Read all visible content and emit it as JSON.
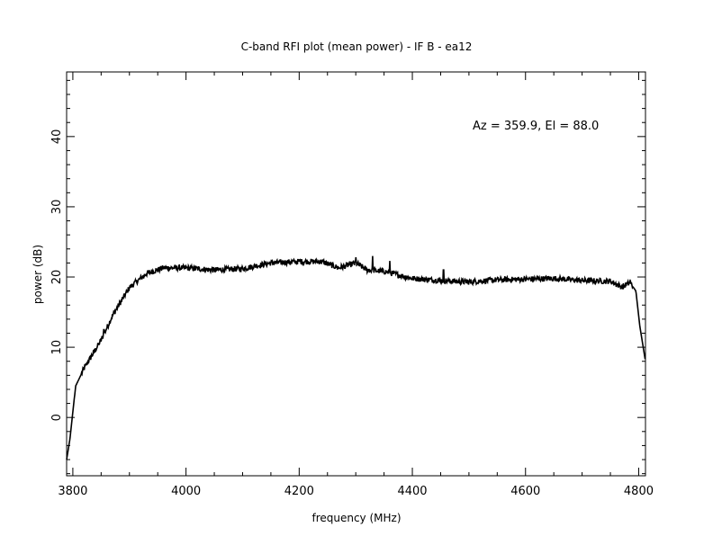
{
  "chart_data": {
    "type": "line",
    "title": "C-band RFI plot (mean power) - IF B - ea12",
    "xlabel": "frequency (MHz)",
    "ylabel": "power (dB)",
    "annotation": "Az = 359.9, El = 88.0",
    "xlim": [
      3789,
      4812
    ],
    "ylim": [
      -8.3,
      49.2
    ],
    "x_ticks": [
      3800,
      4000,
      4200,
      4400,
      4600,
      4800
    ],
    "x_tick_labels": [
      "3800",
      "4000",
      "4200",
      "4400",
      "4600",
      "4800"
    ],
    "x_minor_step": 50,
    "y_ticks": [
      0,
      10,
      20,
      30,
      40
    ],
    "y_tick_labels": [
      "0",
      "10",
      "20",
      "30",
      "40"
    ],
    "y_minor_step": 2,
    "grid": false,
    "line_color": "#000000",
    "series": [
      {
        "name": "mean power",
        "points": [
          [
            3789,
            -6
          ],
          [
            3795,
            -3
          ],
          [
            3805,
            4.5
          ],
          [
            3820,
            7
          ],
          [
            3850,
            11
          ],
          [
            3870,
            14.5
          ],
          [
            3900,
            18.5
          ],
          [
            3930,
            20.5
          ],
          [
            3960,
            21.3
          ],
          [
            4000,
            21.3
          ],
          [
            4050,
            21
          ],
          [
            4100,
            21.2
          ],
          [
            4150,
            22
          ],
          [
            4200,
            22.2
          ],
          [
            4240,
            22.2
          ],
          [
            4270,
            21.3
          ],
          [
            4300,
            22
          ],
          [
            4320,
            21
          ],
          [
            4350,
            20.8
          ],
          [
            4400,
            19.8
          ],
          [
            4450,
            19.5
          ],
          [
            4500,
            19.3
          ],
          [
            4550,
            19.6
          ],
          [
            4600,
            19.7
          ],
          [
            4650,
            19.8
          ],
          [
            4700,
            19.5
          ],
          [
            4750,
            19.4
          ],
          [
            4770,
            18.6
          ],
          [
            4785,
            19.2
          ],
          [
            4795,
            18
          ],
          [
            4802,
            13
          ],
          [
            4812,
            8
          ]
        ],
        "spikes": [
          [
            3855,
            12.5
          ],
          [
            3925,
            19.8
          ],
          [
            4300,
            22.8
          ],
          [
            4330,
            23
          ],
          [
            4360,
            22.3
          ],
          [
            4455,
            21
          ]
        ]
      }
    ]
  }
}
